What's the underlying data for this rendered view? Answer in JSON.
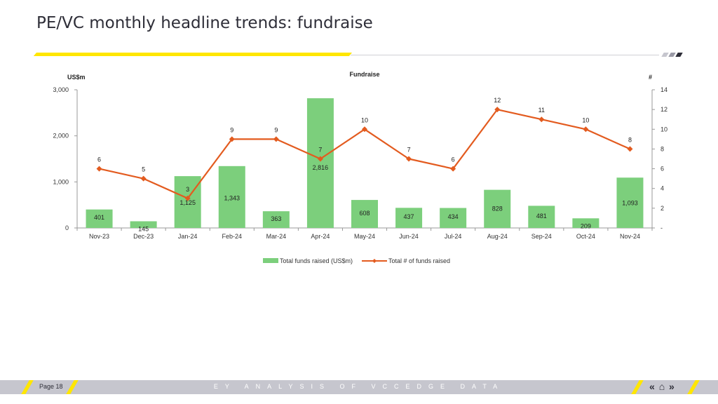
{
  "page": {
    "title": "PE/VC monthly headline trends: fundraise",
    "footer_page": "Page 18",
    "footer_center": "EY ANALYSIS OF VCCEDGE DATA",
    "nav_icons": [
      "chevron-left-double-icon",
      "home-icon",
      "chevron-right-double-icon"
    ]
  },
  "colors": {
    "accent_yellow": "#ffe600",
    "bar_green": "#7ccf7c",
    "line_orange": "#e35b1f"
  },
  "chart_data": {
    "type": "bar",
    "title": "Fundraise",
    "ylabel": "US$m",
    "y2label": "#",
    "categories": [
      "Nov-23",
      "Dec-23",
      "Jan-24",
      "Feb-24",
      "Mar-24",
      "Apr-24",
      "May-24",
      "Jun-24",
      "Jul-24",
      "Aug-24",
      "Sep-24",
      "Oct-24",
      "Nov-24"
    ],
    "ylim": [
      0,
      3000
    ],
    "y_ticks": [
      "0",
      "1,000",
      "2,000",
      "3,000"
    ],
    "y2lim": [
      0,
      14
    ],
    "y2_ticks": [
      "-",
      "2",
      "4",
      "6",
      "8",
      "10",
      "12",
      "14"
    ],
    "legend_position": "bottom",
    "series": [
      {
        "name": "Total funds raised (US$m)",
        "type": "bar",
        "axis": "left",
        "values": [
          401,
          145,
          1125,
          1343,
          363,
          2816,
          608,
          437,
          434,
          828,
          481,
          209,
          1093
        ],
        "labels": [
          "401",
          "145",
          "1,125",
          "1,343",
          "363",
          "2,816",
          "608",
          "437",
          "434",
          "828",
          "481",
          "209",
          "1,093"
        ]
      },
      {
        "name": "Total # of funds raised",
        "type": "line",
        "axis": "right",
        "values": [
          6,
          5,
          3,
          9,
          9,
          7,
          10,
          7,
          6,
          12,
          11,
          10,
          8
        ],
        "labels": [
          "6",
          "5",
          "3",
          "9",
          "9",
          "7",
          "10",
          "7",
          "6",
          "12",
          "11",
          "10",
          "8"
        ]
      }
    ]
  }
}
